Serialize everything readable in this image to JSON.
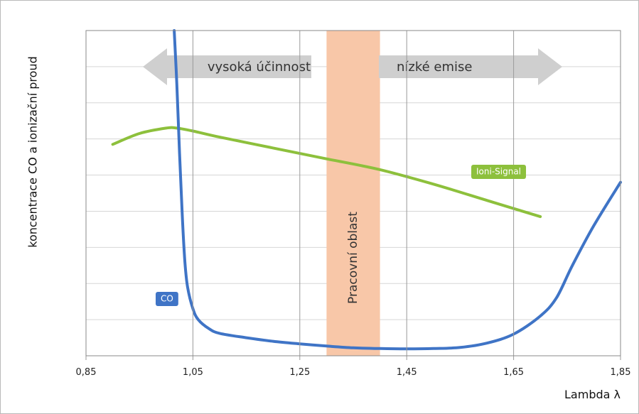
{
  "chart_data": {
    "type": "line",
    "xlabel": "Lambda λ",
    "ylabel": "koncentrace CO a ionizační proud",
    "xlim": [
      0.85,
      1.85
    ],
    "ylim": [
      0,
      9
    ],
    "x_ticks": [
      "0,85",
      "1,05",
      "1,25",
      "1,45",
      "1,65",
      "1,85"
    ],
    "y_ticks_labeled": false,
    "grid": "horizontal",
    "working_band": {
      "label": "Pracovní oblast",
      "x_start": 1.3,
      "x_end": 1.4,
      "color": "#f8c7a8"
    },
    "arrows": [
      {
        "label": "vysoká účinnost",
        "direction": "left",
        "color": "#cfcfcf"
      },
      {
        "label": "nízké emise",
        "direction": "right",
        "color": "#cfcfcf"
      }
    ],
    "series": [
      {
        "name": "CO",
        "color": "#3f74c6",
        "x": [
          1.015,
          1.02,
          1.025,
          1.03,
          1.035,
          1.04,
          1.05,
          1.06,
          1.08,
          1.1,
          1.15,
          1.2,
          1.25,
          1.3,
          1.35,
          1.4,
          1.45,
          1.5,
          1.55,
          1.6,
          1.65,
          1.7,
          1.73,
          1.76,
          1.8,
          1.85
        ],
        "y": [
          9.0,
          7.5,
          5.6,
          3.9,
          2.6,
          1.9,
          1.3,
          1.0,
          0.75,
          0.62,
          0.5,
          0.4,
          0.33,
          0.27,
          0.22,
          0.2,
          0.19,
          0.2,
          0.23,
          0.35,
          0.6,
          1.1,
          1.6,
          2.5,
          3.6,
          4.8
        ]
      },
      {
        "name": "Ioni-Signal",
        "color": "#8dc03c",
        "x": [
          0.9,
          0.95,
          1.0,
          1.02,
          1.05,
          1.1,
          1.2,
          1.3,
          1.4,
          1.5,
          1.6,
          1.7
        ],
        "y": [
          5.85,
          6.15,
          6.3,
          6.3,
          6.22,
          6.05,
          5.75,
          5.45,
          5.15,
          4.75,
          4.3,
          3.85
        ]
      }
    ]
  }
}
